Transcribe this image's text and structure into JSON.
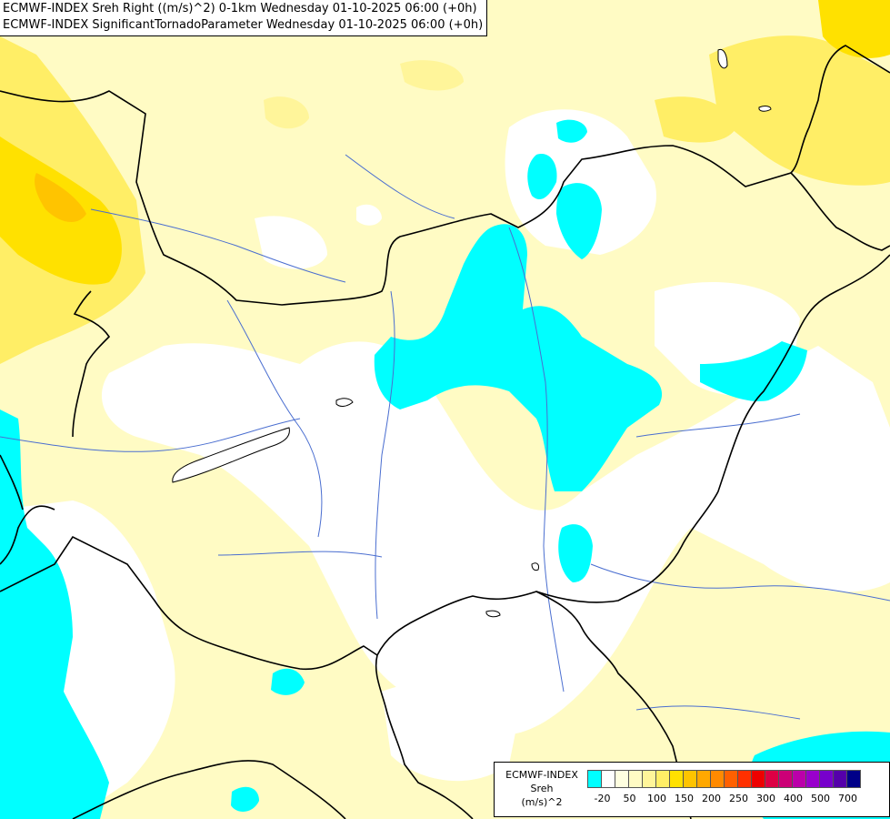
{
  "header": {
    "line1": "ECMWF-INDEX Sreh Right ((m/s)^2) 0-1km Wednesday 01-10-2025 06:00 (+0h)",
    "line2": "ECMWF-INDEX SignificantTornadoParameter Wednesday 01-10-2025 06:00 (+0h)"
  },
  "legend": {
    "title_line1": "ECMWF-INDEX",
    "title_line2": "Sreh",
    "title_line3": "(m/s)^2",
    "colors": [
      "#00ffff",
      "#ffffff",
      "#ffffe0",
      "#fffbc4",
      "#fff59a",
      "#ffee66",
      "#ffe100",
      "#ffc400",
      "#ffa800",
      "#ff8a00",
      "#ff6000",
      "#ff3000",
      "#ee0000",
      "#dd0044",
      "#cc0077",
      "#bb00aa",
      "#9900cc",
      "#7700cc",
      "#5500aa",
      "#000088"
    ],
    "labels": [
      "-20",
      "50",
      "100",
      "150",
      "200",
      "250",
      "300",
      "400",
      "500",
      "700"
    ]
  },
  "map": {
    "fill_colors": {
      "base": "#fffbc4",
      "white": "#ffffff",
      "cyan": "#00ffff",
      "light_yellow": "#fff59a",
      "yellow": "#ffee66",
      "gold": "#ffe100",
      "orange": "#ffc400"
    },
    "line_colors": {
      "border": "#000000",
      "river": "#4a6ed0"
    }
  }
}
